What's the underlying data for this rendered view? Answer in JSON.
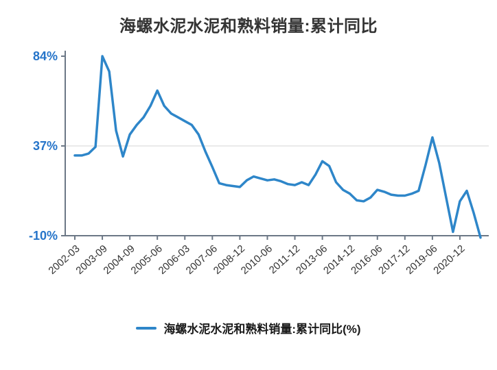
{
  "title": "海螺水泥水泥和熟料销量:累计同比",
  "legend": {
    "label": "海螺水泥水泥和熟料销量:累计同比(%)"
  },
  "colors": {
    "line": "#2E86C9",
    "y_label": "#2574C9",
    "x_label": "#333333",
    "axis": "#6b7785",
    "grid": "#e3e3e3",
    "background": "#ffffff"
  },
  "chart_data": {
    "type": "line",
    "title": "海螺水泥水泥和熟料销量:累计同比",
    "series_name": "海螺水泥水泥和熟料销量:累计同比(%)",
    "y_unit": "%",
    "ylim": [
      -10,
      84
    ],
    "y_ticks": [
      84,
      37,
      -10
    ],
    "grid": "horizontal gridline at 37 only",
    "legend_position": "bottom-center",
    "x_tick_labels": [
      "2002-03",
      "2003-09",
      "2004-09",
      "2005-06",
      "2006-03",
      "2007-06",
      "2008-12",
      "2010-06",
      "2011-12",
      "2013-06",
      "2014-12",
      "2016-06",
      "2017-12",
      "2019-06",
      "2020-12"
    ],
    "x_tick_indices": [
      0,
      4,
      8,
      12,
      16,
      20,
      24,
      28,
      32,
      36,
      40,
      44,
      48,
      52,
      56
    ],
    "values": [
      32,
      32,
      33,
      36.5,
      84,
      76,
      45,
      31.5,
      43,
      48,
      52,
      58,
      66,
      58,
      54,
      52,
      50,
      48,
      43,
      34,
      26,
      17.5,
      16.5,
      16,
      15.5,
      19,
      21,
      20,
      19,
      19.5,
      18.5,
      17,
      16.5,
      18,
      16.5,
      22,
      29,
      26.5,
      18,
      14,
      12,
      8.5,
      8,
      10,
      14,
      13,
      11.5,
      11,
      11,
      12,
      13.5,
      27,
      41.5,
      28,
      10,
      -8,
      8,
      13.5,
      2,
      -11
    ]
  }
}
